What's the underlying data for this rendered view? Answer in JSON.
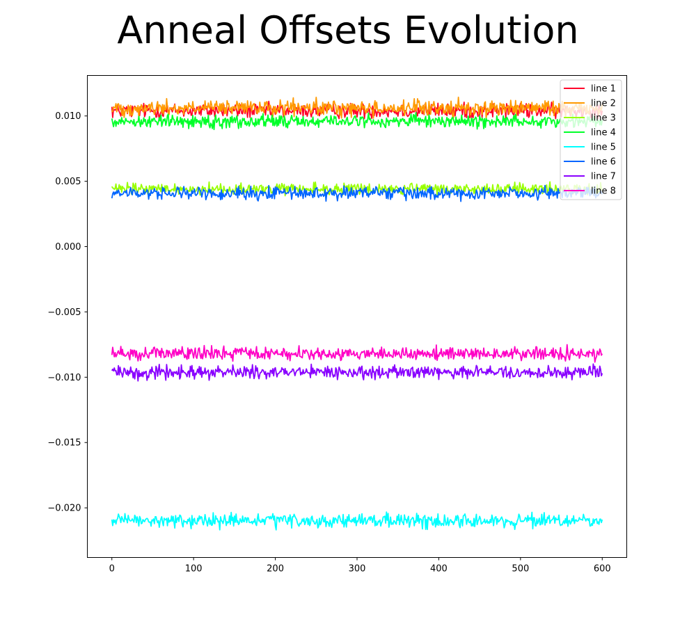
{
  "chart_data": {
    "type": "line",
    "title": "Anneal Offsets Evolution",
    "xlabel": "",
    "ylabel": "",
    "xlim": [
      -30,
      630
    ],
    "ylim": [
      -0.0238,
      0.0131
    ],
    "x_range": [
      0,
      600
    ],
    "x_ticks": [
      0,
      100,
      200,
      300,
      400,
      500,
      600
    ],
    "x_tick_labels": [
      "0",
      "100",
      "200",
      "300",
      "400",
      "500",
      "600"
    ],
    "y_ticks": [
      0.01,
      0.005,
      0.0,
      -0.005,
      -0.01,
      -0.015,
      -0.02
    ],
    "y_tick_labels": [
      "0.010",
      "0.005",
      "0.000",
      "−0.005",
      "−0.010",
      "−0.015",
      "−0.020"
    ],
    "grid": false,
    "legend_position": "top-right",
    "series": [
      {
        "name": "line 1",
        "color": "#ff0029",
        "base": 0.0104,
        "amplitude": 0.00028,
        "start": 0.0107,
        "end": 0.0104
      },
      {
        "name": "line 2",
        "color": "#ff9a00",
        "base": 0.0106,
        "amplitude": 0.0003,
        "start": 0.0103,
        "end": 0.0109
      },
      {
        "name": "line 3",
        "color": "#98ff00",
        "base": 0.0044,
        "amplitude": 0.00022,
        "start": 0.0046,
        "end": 0.0043
      },
      {
        "name": "line 4",
        "color": "#00ff29",
        "base": 0.0096,
        "amplitude": 0.00025,
        "start": 0.0098,
        "end": 0.0097
      },
      {
        "name": "line 5",
        "color": "#00ffff",
        "base": -0.021,
        "amplitude": 0.00026,
        "start": -0.0209,
        "end": -0.0209
      },
      {
        "name": "line 6",
        "color": "#0065ff",
        "base": 0.0041,
        "amplitude": 0.00024,
        "start": 0.0037,
        "end": 0.004
      },
      {
        "name": "line 7",
        "color": "#8900ff",
        "base": -0.0096,
        "amplitude": 0.00025,
        "start": -0.0095,
        "end": -0.0097
      },
      {
        "name": "line 8",
        "color": "#ff00c6",
        "base": -0.0082,
        "amplitude": 0.00025,
        "start": -0.0083,
        "end": -0.0082
      }
    ]
  }
}
